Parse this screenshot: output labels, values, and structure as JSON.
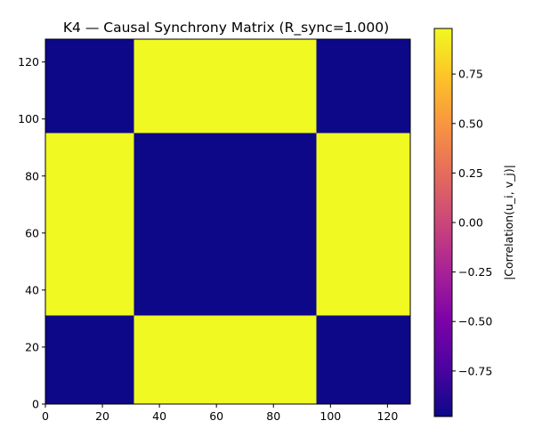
{
  "chart_data": {
    "type": "heatmap",
    "title": "K4 — Causal Synchrony Matrix (R_sync=1.000)",
    "xlabel": "",
    "ylabel": "",
    "xlim": [
      0,
      128
    ],
    "ylim": [
      0,
      128
    ],
    "x_ticks": [
      0,
      20,
      40,
      60,
      80,
      100,
      120
    ],
    "y_ticks": [
      0,
      20,
      40,
      60,
      80,
      100,
      120
    ],
    "x_edges": [
      0,
      31,
      95,
      128
    ],
    "y_edges": [
      0,
      31,
      95,
      128
    ],
    "cells": [
      [
        -0.98,
        0.98,
        -0.98
      ],
      [
        0.98,
        -0.98,
        0.98
      ],
      [
        -0.98,
        0.98,
        -0.98
      ]
    ],
    "colormap": "plasma",
    "colorbar": {
      "label": "|Correlation(u_i, v_j)|",
      "vmin": -0.98,
      "vmax": 0.98,
      "ticks": [
        -0.75,
        -0.5,
        -0.25,
        0.0,
        0.25,
        0.5,
        0.75
      ],
      "tick_labels": [
        "−0.75",
        "−0.50",
        "−0.25",
        "0.00",
        "0.25",
        "0.50",
        "0.75"
      ]
    },
    "colors": {
      "low": "#0d0887",
      "high": "#f0f921"
    },
    "grid": false
  }
}
